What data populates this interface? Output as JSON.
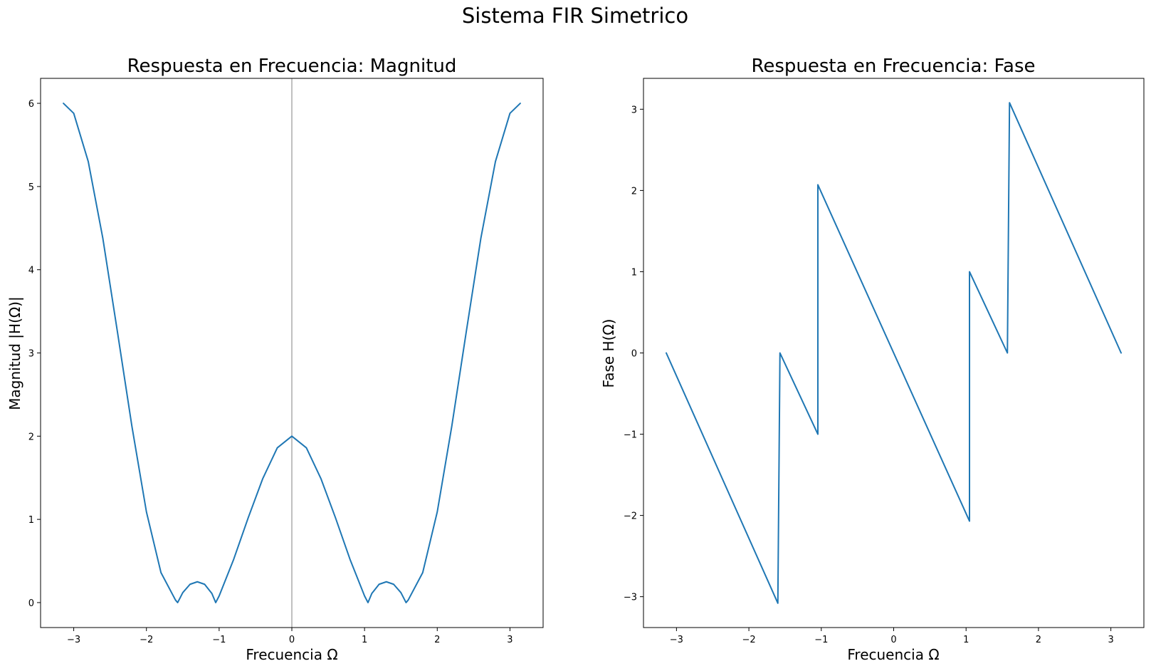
{
  "figure": {
    "suptitle": "Sistema FIR Simetrico"
  },
  "colors": {
    "series": "#1f77b4",
    "axis": "#000000",
    "zero_line": "#808080",
    "background": "#ffffff"
  },
  "chart_data": [
    {
      "type": "line",
      "title": "Respuesta en Frecuencia: Magnitud",
      "xlabel": "Frecuencia Ω",
      "ylabel": "Magnitud |H(Ω)|",
      "xlim": [
        -3.456,
        3.456
      ],
      "ylim": [
        -0.3,
        6.3
      ],
      "xticks": [
        -3,
        -2,
        -1,
        0,
        1,
        2,
        3
      ],
      "yticks": [
        0,
        1,
        2,
        3,
        4,
        5,
        6
      ],
      "xtick_labels": [
        "−3",
        "−2",
        "−1",
        "0",
        "1",
        "2",
        "3"
      ],
      "ytick_labels": [
        "0",
        "1",
        "2",
        "3",
        "4",
        "5",
        "6"
      ],
      "vertical_line_x": 0,
      "grid": false,
      "series": [
        {
          "x": [
            -3.1416,
            -3.0,
            -2.8,
            -2.6,
            -2.4,
            -2.2,
            -2.0,
            -1.8,
            -1.6,
            -1.5708,
            -1.5,
            -1.4,
            -1.3,
            -1.2,
            -1.1,
            -1.0472,
            -1.0,
            -0.8,
            -0.6,
            -0.4,
            -0.2,
            0.0,
            0.2,
            0.4,
            0.6,
            0.8,
            1.0,
            1.0472,
            1.1,
            1.2,
            1.3,
            1.4,
            1.5,
            1.5708,
            1.6,
            1.8,
            2.0,
            2.2,
            2.4,
            2.6,
            2.8,
            3.0,
            3.1416
          ],
          "y": [
            6.0,
            5.88,
            5.3,
            4.38,
            3.26,
            2.12,
            1.09,
            0.36,
            0.03,
            0.0,
            0.12,
            0.22,
            0.25,
            0.22,
            0.11,
            0.0,
            0.08,
            0.52,
            1.02,
            1.49,
            1.86,
            2.0,
            1.86,
            1.49,
            1.02,
            0.52,
            0.08,
            0.0,
            0.11,
            0.22,
            0.25,
            0.22,
            0.12,
            0.0,
            0.03,
            0.36,
            1.09,
            2.12,
            3.26,
            4.38,
            5.3,
            5.88,
            6.0
          ]
        }
      ]
    },
    {
      "type": "line",
      "title": "Respuesta en Frecuencia: Fase",
      "xlabel": "Frecuencia Ω",
      "ylabel": "Fase H(Ω)",
      "xlim": [
        -3.456,
        3.456
      ],
      "ylim": [
        -3.38,
        3.38
      ],
      "xticks": [
        -3,
        -2,
        -1,
        0,
        1,
        2,
        3
      ],
      "yticks": [
        -3,
        -2,
        -1,
        0,
        1,
        2,
        3
      ],
      "xtick_labels": [
        "−3",
        "−2",
        "−1",
        "0",
        "1",
        "2",
        "3"
      ],
      "ytick_labels": [
        "−3",
        "−2",
        "−1",
        "0",
        "1",
        "2",
        "3"
      ],
      "grid": false,
      "series": [
        {
          "x": [
            -3.1416,
            -1.6,
            -1.5708,
            -1.0472,
            -1.0472,
            1.0472,
            1.0472,
            1.5708,
            1.6,
            3.1416
          ],
          "y": [
            0.0,
            -3.08,
            0.0,
            -1.0,
            2.07,
            -2.07,
            1.0,
            0.0,
            3.08,
            0.0
          ]
        }
      ]
    }
  ]
}
